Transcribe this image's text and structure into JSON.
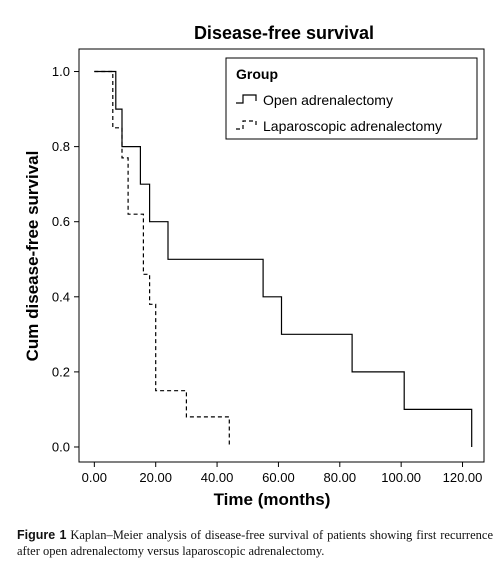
{
  "chart_data": {
    "type": "line",
    "title": "Disease-free survival",
    "xlabel": "Time (months)",
    "ylabel": "Cum disease-free survival",
    "xlim": [
      -5,
      127
    ],
    "ylim": [
      -0.04,
      1.06
    ],
    "xticks": [
      0,
      20,
      40,
      60,
      80,
      100,
      120
    ],
    "xtick_labels": [
      "0.00",
      "20.00",
      "40.00",
      "60.00",
      "80.00",
      "100.00",
      "120.00"
    ],
    "yticks": [
      0.0,
      0.2,
      0.4,
      0.6,
      0.8,
      1.0
    ],
    "ytick_labels": [
      "0.0",
      "0.2",
      "0.4",
      "0.6",
      "0.8",
      "1.0"
    ],
    "grid": false,
    "legend": {
      "title": "Group",
      "placement": "top-right"
    },
    "series": [
      {
        "name": "Open adrenalectomy",
        "style": "solid",
        "color": "#000000",
        "step": true,
        "x": [
          0,
          7,
          9,
          15,
          18,
          24,
          55,
          61,
          84,
          101,
          123
        ],
        "y": [
          1.0,
          0.9,
          0.8,
          0.7,
          0.6,
          0.5,
          0.4,
          0.3,
          0.2,
          0.1,
          0.0
        ]
      },
      {
        "name": "Laparoscopic adrenalectomy",
        "style": "dashed",
        "color": "#000000",
        "step": true,
        "x": [
          0,
          6,
          9,
          11,
          16,
          18,
          20,
          23,
          30,
          44
        ],
        "y": [
          1.0,
          0.85,
          0.77,
          0.62,
          0.46,
          0.38,
          0.15,
          0.15,
          0.08,
          0.0
        ]
      }
    ]
  },
  "caption": {
    "label": "Figure 1",
    "text": "Kaplan–Meier analysis of disease-free survival of patients showing first recurrence after open adrenalectomy versus laparoscopic adrenalectomy."
  }
}
